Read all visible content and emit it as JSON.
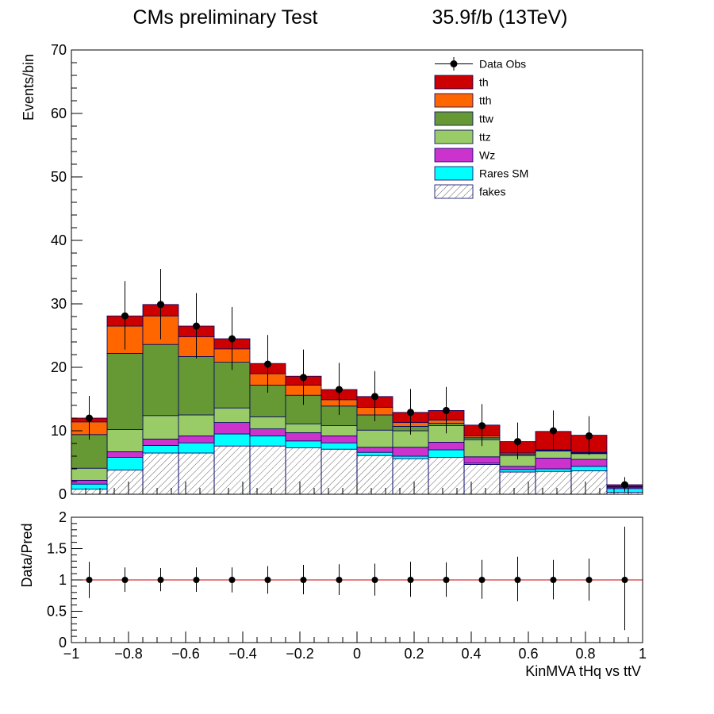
{
  "header": {
    "title": "CMs preliminary Test",
    "lumi": "35.9f/b (13TeV)"
  },
  "chart_data": [
    {
      "type": "bar",
      "subtype": "stacked-histogram",
      "title": "CMs preliminary Test",
      "lumi_label": "35.9f/b (13TeV)",
      "xlabel": "KinMVA tHq vs ttV",
      "ylabel": "Events/bin",
      "xlim": [
        -1,
        1
      ],
      "ylim": [
        0,
        70
      ],
      "yticks": [
        0,
        10,
        20,
        30,
        40,
        50,
        60,
        70
      ],
      "legend_position": "top-right",
      "bin_edges": [
        -1.0,
        -0.875,
        -0.75,
        -0.625,
        -0.5,
        -0.375,
        -0.25,
        -0.125,
        0.0,
        0.125,
        0.25,
        0.375,
        0.5,
        0.625,
        0.75,
        0.875,
        1.0
      ],
      "series": [
        {
          "name": "fakes",
          "color": "#ffffff",
          "hatched": true,
          "values": [
            0.8,
            3.8,
            6.5,
            6.5,
            7.6,
            7.6,
            7.3,
            7.1,
            6.1,
            5.6,
            5.8,
            4.7,
            3.5,
            3.6,
            3.7,
            0.3
          ]
        },
        {
          "name": "Rares SM",
          "color": "#00ffff",
          "values": [
            0.8,
            2.0,
            1.2,
            1.6,
            1.9,
            1.6,
            1.1,
            1.0,
            0.5,
            0.4,
            1.2,
            0.2,
            0.4,
            0.4,
            0.7,
            0.6
          ]
        },
        {
          "name": "Wz",
          "color": "#cc33cc",
          "values": [
            0.6,
            0.9,
            1.0,
            1.1,
            1.8,
            1.1,
            1.3,
            1.1,
            0.8,
            1.4,
            1.2,
            1.0,
            0.5,
            1.7,
            1.1,
            0.2
          ]
        },
        {
          "name": "ttz",
          "color": "#99cc66",
          "values": [
            1.9,
            3.5,
            3.7,
            3.3,
            2.3,
            1.9,
            1.4,
            1.6,
            2.7,
            2.6,
            2.6,
            2.7,
            1.7,
            1.1,
            0.9,
            0.0
          ]
        },
        {
          "name": "ttw",
          "color": "#669933",
          "values": [
            5.3,
            12.0,
            11.2,
            9.2,
            7.2,
            5.0,
            4.5,
            3.1,
            2.4,
            0.7,
            0.4,
            0.3,
            0.2,
            0.1,
            0.1,
            0.0
          ]
        },
        {
          "name": "tth",
          "color": "#ff6600",
          "values": [
            2.0,
            4.3,
            4.5,
            3.1,
            2.1,
            1.8,
            1.6,
            1.0,
            1.2,
            0.6,
            0.5,
            0.3,
            0.2,
            0.1,
            0.1,
            0.1
          ]
        },
        {
          "name": "th",
          "color": "#cc0000",
          "values": [
            0.6,
            1.6,
            1.8,
            1.7,
            1.6,
            1.6,
            1.4,
            1.6,
            1.7,
            1.6,
            1.5,
            1.7,
            1.8,
            2.9,
            2.7,
            0.3
          ]
        }
      ],
      "data_obs": {
        "name": "Data Obs",
        "values": [
          12.0,
          28.1,
          29.9,
          26.5,
          24.5,
          20.5,
          18.4,
          16.5,
          15.4,
          12.9,
          13.2,
          10.8,
          8.3,
          10.0,
          9.2,
          1.5
        ],
        "err_up": [
          3.5,
          5.5,
          5.6,
          5.2,
          5.0,
          4.6,
          4.4,
          4.2,
          4.0,
          3.7,
          3.7,
          3.4,
          3.0,
          3.2,
          3.1,
          1.2
        ],
        "err_down": [
          3.4,
          5.3,
          5.5,
          5.1,
          4.9,
          4.5,
          4.3,
          4.0,
          3.9,
          3.5,
          3.6,
          3.2,
          2.8,
          3.1,
          3.0,
          1.1
        ]
      },
      "legend": [
        "Data Obs",
        "th",
        "tth",
        "ttw",
        "ttz",
        "Wz",
        "Rares SM",
        "fakes"
      ]
    },
    {
      "type": "scatter",
      "subtype": "ratio-panel",
      "xlabel": "KinMVA tHq vs ttV",
      "ylabel": "Data/Pred",
      "xlim": [
        -1,
        1
      ],
      "ylim": [
        0,
        2
      ],
      "yticks": [
        0,
        0.5,
        1,
        1.5,
        2
      ],
      "ytick_labels": [
        "0",
        "0.5",
        "1",
        "1.5",
        "2"
      ],
      "xticks": [
        -1,
        -0.8,
        -0.6,
        -0.4,
        -0.2,
        0,
        0.2,
        0.4,
        0.6,
        0.8,
        1
      ],
      "xtick_labels": [
        "−1",
        "−0.8",
        "−0.6",
        "−0.4",
        "−0.2",
        "0",
        "0.2",
        "0.4",
        "0.6",
        "0.8",
        "1"
      ],
      "reference_line": 1,
      "reference_color": "#cc0000",
      "x": [
        -0.9375,
        -0.8125,
        -0.6875,
        -0.5625,
        -0.4375,
        -0.3125,
        -0.1875,
        -0.0625,
        0.0625,
        0.1875,
        0.3125,
        0.4375,
        0.5625,
        0.6875,
        0.8125,
        0.9375
      ],
      "y": [
        1,
        1,
        1,
        1,
        1,
        1,
        1,
        1,
        1,
        1,
        1,
        1,
        1,
        1,
        1,
        1
      ],
      "err_up": [
        0.29,
        0.2,
        0.19,
        0.2,
        0.2,
        0.22,
        0.24,
        0.25,
        0.26,
        0.29,
        0.28,
        0.32,
        0.37,
        0.32,
        0.34,
        0.85
      ],
      "err_down": [
        0.29,
        0.19,
        0.18,
        0.19,
        0.2,
        0.22,
        0.23,
        0.24,
        0.25,
        0.27,
        0.27,
        0.3,
        0.34,
        0.31,
        0.33,
        0.8
      ]
    }
  ]
}
